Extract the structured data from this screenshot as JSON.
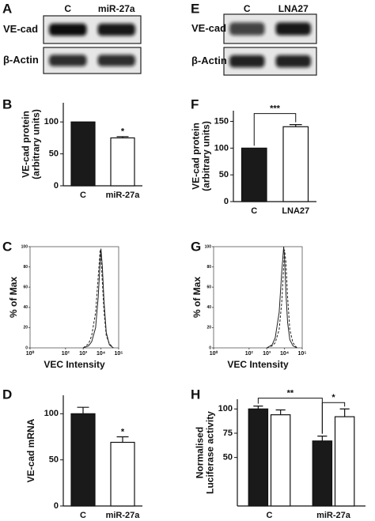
{
  "chart_data": [
    {
      "type": "blot",
      "panel": "A",
      "lanes": [
        "C",
        "miR-27a"
      ],
      "rows": [
        "VE-cad",
        "β-Actin"
      ]
    },
    {
      "type": "blot",
      "panel": "E",
      "lanes": [
        "C",
        "LNA27"
      ],
      "rows": [
        "VE-cad",
        "β-Actin"
      ]
    },
    {
      "type": "bar",
      "panel": "B",
      "y_label": [
        "VE-cad protein",
        "(arbitrary units)"
      ],
      "categories": [
        "C",
        "miR-27a"
      ],
      "series": [
        {
          "colors": [
            "#1a1a1a",
            "#ffffff"
          ],
          "values": [
            100,
            75
          ],
          "errors": [
            null,
            2
          ]
        }
      ],
      "ylim": [
        0,
        130
      ],
      "yticks": [
        0,
        50,
        100
      ],
      "annotations": [
        "*"
      ]
    },
    {
      "type": "bar",
      "panel": "F",
      "y_label": [
        "VE-cad protein",
        "(arbitrary units)"
      ],
      "categories": [
        "C",
        "LNA27"
      ],
      "series": [
        {
          "colors": [
            "#1a1a1a",
            "#ffffff"
          ],
          "values": [
            100,
            140
          ],
          "errors": [
            null,
            4
          ]
        }
      ],
      "ylim": [
        0,
        170
      ],
      "yticks": [
        0,
        50,
        100,
        150
      ],
      "annotations": [
        "***"
      ]
    },
    {
      "type": "flow",
      "panel": "C",
      "x_label": "VEC Intensity",
      "y_label": "% of Max",
      "xscale": "log",
      "xlim": [
        1,
        100000
      ],
      "xticks": [
        {
          "value": 1,
          "label": "10⁰"
        },
        {
          "value": 100,
          "label": "10²"
        },
        {
          "value": 1000,
          "label": "10³"
        },
        {
          "value": 10000,
          "label": "10⁴"
        },
        {
          "value": 100000,
          "label": "10⁵"
        }
      ],
      "ylim": [
        0,
        100
      ],
      "yticks": [
        0,
        20,
        40,
        60,
        80,
        100
      ],
      "x": [
        1000,
        2000,
        3000,
        5000,
        7000,
        9000,
        10000,
        12000,
        15000,
        20000,
        30000,
        50000
      ],
      "series": [
        {
          "dash": false,
          "values": [
            0,
            2,
            6,
            20,
            50,
            85,
            98,
            80,
            45,
            15,
            3,
            0
          ]
        },
        {
          "dash": true,
          "values": [
            0,
            4,
            12,
            35,
            70,
            97,
            92,
            65,
            35,
            12,
            4,
            0
          ]
        }
      ]
    },
    {
      "type": "flow",
      "panel": "G",
      "x_label": "VEC Intensity",
      "y_label": "% of Max",
      "xscale": "log",
      "xlim": [
        1,
        100000
      ],
      "xticks": [
        {
          "value": 1,
          "label": "10⁰"
        },
        {
          "value": 100,
          "label": "10²"
        },
        {
          "value": 1000,
          "label": "10³"
        },
        {
          "value": 10000,
          "label": "10⁴"
        },
        {
          "value": 100000,
          "label": "10⁵"
        }
      ],
      "ylim": [
        0,
        100
      ],
      "yticks": [
        0,
        20,
        40,
        60,
        80,
        100
      ],
      "x": [
        1000,
        2000,
        3000,
        5000,
        7000,
        9000,
        10000,
        12000,
        15000,
        20000,
        30000,
        50000
      ],
      "series": [
        {
          "dash": false,
          "values": [
            0,
            3,
            10,
            35,
            75,
            100,
            90,
            55,
            25,
            8,
            2,
            0
          ]
        },
        {
          "dash": true,
          "values": [
            0,
            2,
            5,
            18,
            45,
            80,
            97,
            85,
            50,
            18,
            5,
            0
          ]
        }
      ]
    },
    {
      "type": "bar",
      "panel": "D",
      "y_label": [
        "VE-cad mRNA"
      ],
      "categories": [
        "C",
        "miR-27a"
      ],
      "series": [
        {
          "colors": [
            "#1a1a1a",
            "#ffffff"
          ],
          "values": [
            100,
            69
          ],
          "errors": [
            7,
            6
          ]
        }
      ],
      "ylim": [
        0,
        120
      ],
      "yticks": [
        0,
        50,
        100
      ],
      "annotations": [
        "*"
      ]
    },
    {
      "type": "bar",
      "panel": "H",
      "y_label": [
        "Normalised",
        "Luciferase activity"
      ],
      "categories": [
        "C",
        "miR-27a"
      ],
      "series": [
        {
          "color": "#1a1a1a",
          "values": [
            100,
            67
          ],
          "errors": [
            3,
            5
          ]
        },
        {
          "color": "#ffffff",
          "values": [
            94,
            92
          ],
          "errors": [
            5,
            8
          ]
        }
      ],
      "ylim": [
        0,
        110
      ],
      "yticks": [
        50,
        75,
        100
      ],
      "annotations": [
        "**",
        "*"
      ]
    }
  ]
}
